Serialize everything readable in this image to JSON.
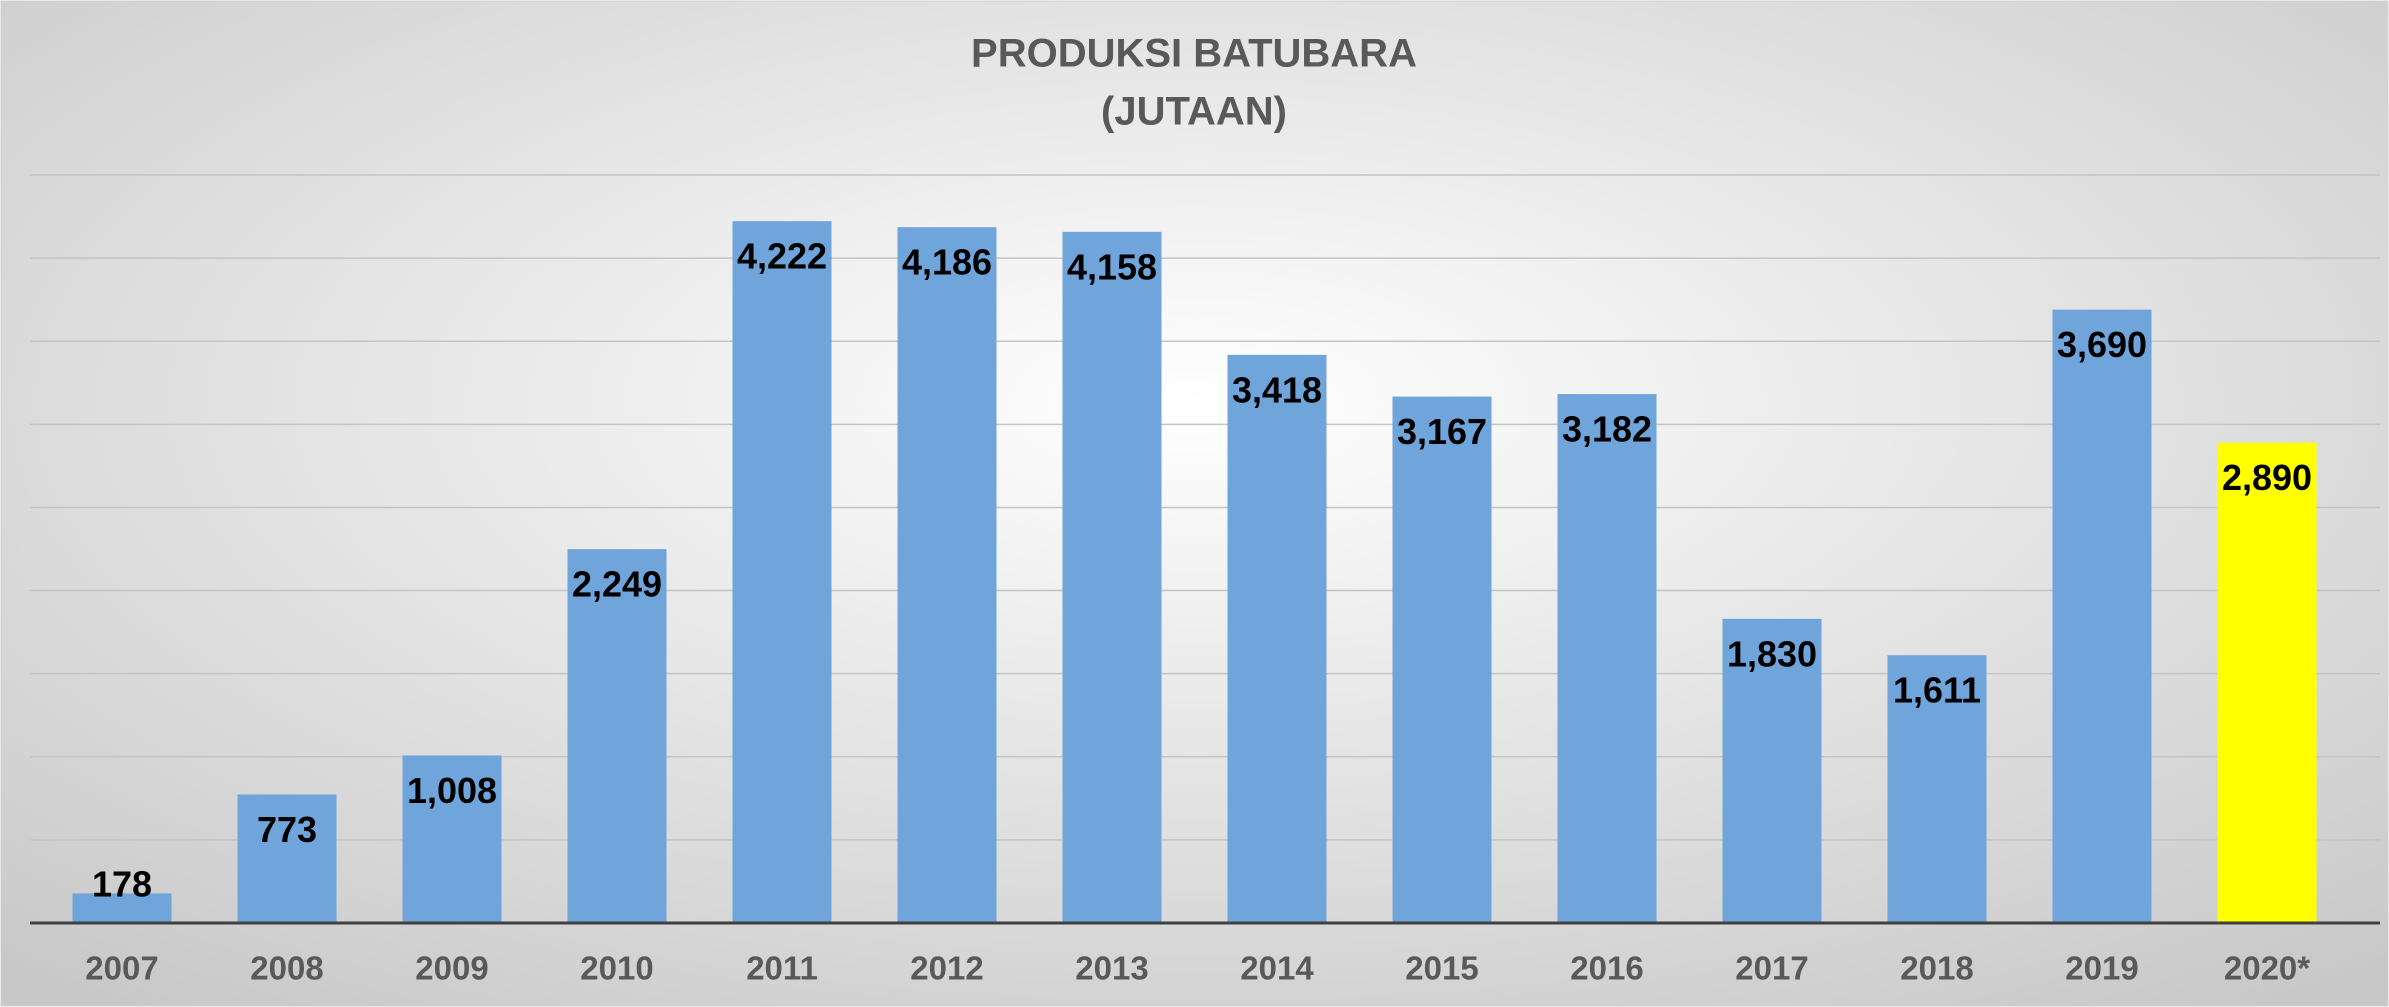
{
  "chart_data": {
    "type": "bar",
    "title": "PRODUKSI BATUBARA",
    "subtitle": "(JUTAAN)",
    "categories": [
      "2007",
      "2008",
      "2009",
      "2010",
      "2011",
      "2012",
      "2013",
      "2014",
      "2015",
      "2016",
      "2017",
      "2018",
      "2019",
      "2020*"
    ],
    "values": [
      178,
      773,
      1008,
      2249,
      4222,
      4186,
      4158,
      3418,
      3167,
      3182,
      1830,
      1611,
      3690,
      2890
    ],
    "value_labels": [
      "178",
      "773",
      "1,008",
      "2,249",
      "4,222",
      "4,186",
      "4,158",
      "3,418",
      "3,167",
      "3,182",
      "1,830",
      "1,611",
      "3,690",
      "2,890"
    ],
    "colors": [
      "#6fa5da",
      "#6fa5da",
      "#6fa5da",
      "#6fa5da",
      "#6fa5da",
      "#6fa5da",
      "#6fa5da",
      "#6fa5da",
      "#6fa5da",
      "#6fa5da",
      "#6fa5da",
      "#6fa5da",
      "#6fa5da",
      "#ffff00"
    ],
    "ylim": [
      0,
      4500
    ],
    "yticks": [
      500,
      1000,
      1500,
      2000,
      2500,
      3000,
      3500,
      4000,
      4500
    ],
    "grid": true
  }
}
